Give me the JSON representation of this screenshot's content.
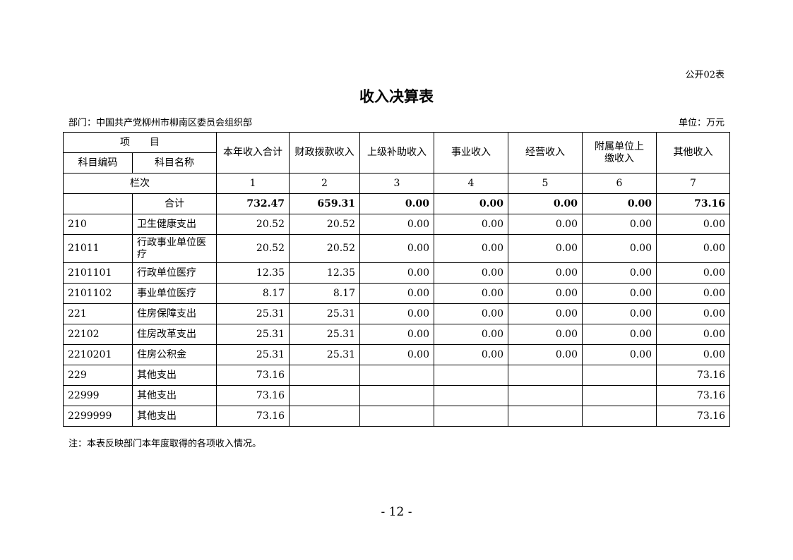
{
  "form_no": "公开02表",
  "title": "收入决算表",
  "department": "部门：中国共产党柳州市柳南区委员会组织部",
  "unit": "单位：万元",
  "header": {
    "item": "项　　目",
    "code": "科目编码",
    "name": "科目名称",
    "columns": [
      "本年收入合计",
      "财政拨款收入",
      "上级补助收入",
      "事业收入",
      "经营收入",
      "附属单位上缴收入",
      "其他收入"
    ],
    "row_index_label": "栏次",
    "row_index": [
      "1",
      "2",
      "3",
      "4",
      "5",
      "6",
      "7"
    ]
  },
  "total": {
    "label": "合计",
    "values": [
      "732.47",
      "659.31",
      "0.00",
      "0.00",
      "0.00",
      "0.00",
      "73.16"
    ]
  },
  "rows": [
    {
      "code": "210",
      "name": "卫生健康支出",
      "values": [
        "20.52",
        "20.52",
        "0.00",
        "0.00",
        "0.00",
        "0.00",
        "0.00"
      ]
    },
    {
      "code": "21011",
      "name": "行政事业单位医疗",
      "values": [
        "20.52",
        "20.52",
        "0.00",
        "0.00",
        "0.00",
        "0.00",
        "0.00"
      ]
    },
    {
      "code": "2101101",
      "name": "行政单位医疗",
      "values": [
        "12.35",
        "12.35",
        "0.00",
        "0.00",
        "0.00",
        "0.00",
        "0.00"
      ]
    },
    {
      "code": "2101102",
      "name": "事业单位医疗",
      "values": [
        "8.17",
        "8.17",
        "0.00",
        "0.00",
        "0.00",
        "0.00",
        "0.00"
      ]
    },
    {
      "code": "221",
      "name": "住房保障支出",
      "values": [
        "25.31",
        "25.31",
        "0.00",
        "0.00",
        "0.00",
        "0.00",
        "0.00"
      ]
    },
    {
      "code": "22102",
      "name": "住房改革支出",
      "values": [
        "25.31",
        "25.31",
        "0.00",
        "0.00",
        "0.00",
        "0.00",
        "0.00"
      ]
    },
    {
      "code": "2210201",
      "name": "住房公积金",
      "values": [
        "25.31",
        "25.31",
        "0.00",
        "0.00",
        "0.00",
        "0.00",
        "0.00"
      ]
    },
    {
      "code": "229",
      "name": "其他支出",
      "values": [
        "73.16",
        "",
        "",
        "",
        "",
        "",
        "73.16"
      ]
    },
    {
      "code": "22999",
      "name": "其他支出",
      "values": [
        "73.16",
        "",
        "",
        "",
        "",
        "",
        "73.16"
      ]
    },
    {
      "code": "2299999",
      "name": "其他支出",
      "values": [
        "73.16",
        "",
        "",
        "",
        "",
        "",
        "73.16"
      ]
    }
  ],
  "note": "注：本表反映部门本年度取得的各项收入情况。",
  "page_number": "- 12 -"
}
